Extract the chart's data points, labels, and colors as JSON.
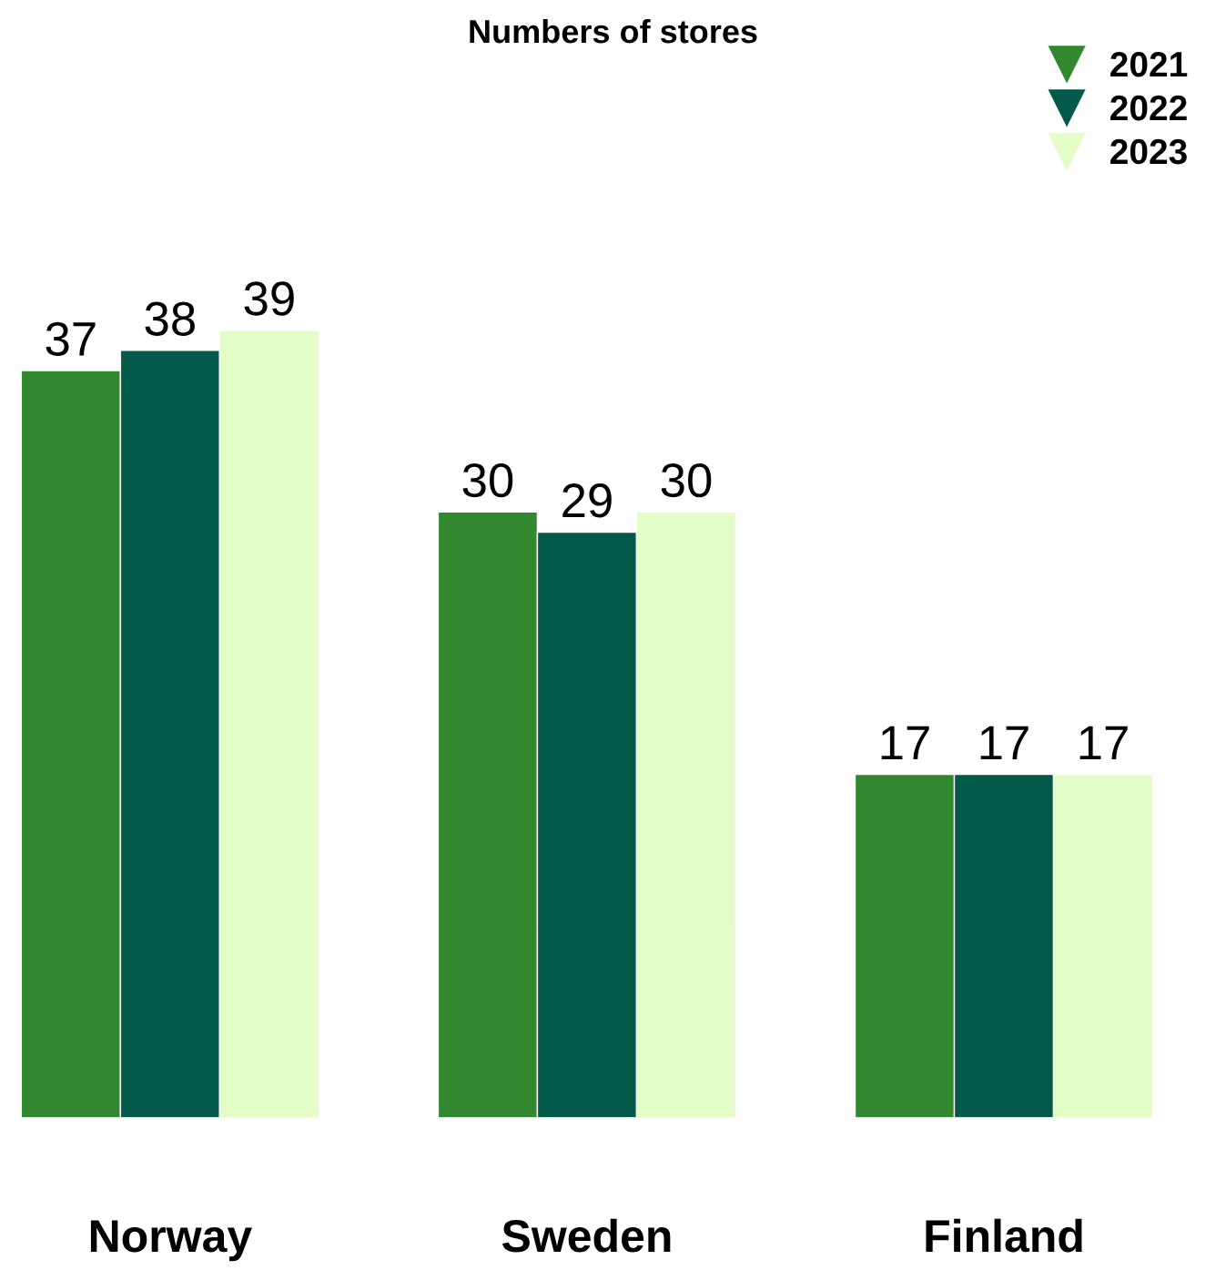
{
  "chart_data": {
    "type": "bar",
    "title": "Numbers of stores",
    "categories": [
      "Norway",
      "Sweden",
      "Finland"
    ],
    "series": [
      {
        "name": "2021",
        "color": "#31882e",
        "values": [
          37,
          30,
          17
        ]
      },
      {
        "name": "2022",
        "color": "#035a4b",
        "values": [
          38,
          29,
          17
        ]
      },
      {
        "name": "2023",
        "color": "#e4fdc6",
        "values": [
          39,
          30,
          17
        ]
      }
    ],
    "data_labels": true,
    "legend": "top right",
    "tick_labels": "x",
    "grid": false
  }
}
